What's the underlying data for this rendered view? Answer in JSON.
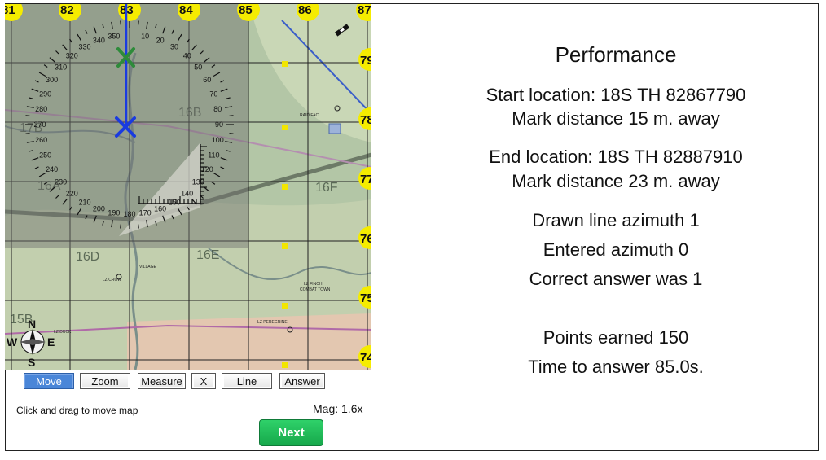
{
  "map": {
    "grid_top_labels": [
      "81",
      "82",
      "83",
      "84",
      "85",
      "86",
      "87"
    ],
    "grid_right_labels": [
      "79",
      "78",
      "77",
      "76",
      "75",
      "74"
    ],
    "grid_squares": [
      "16B",
      "17B",
      "16A",
      "16F",
      "16D",
      "16E",
      "15B"
    ],
    "place_labels": [
      "LZ FINCH",
      "COMBAT TOWN",
      "LZ PEREGRINE",
      "LZ DUCK",
      "VILLAGE",
      "LZ CROW",
      "RAID FAC"
    ],
    "protractor_ticks": [
      "320",
      "330",
      "340",
      "350",
      "10",
      "20",
      "30",
      "40",
      "50",
      "60",
      "70",
      "80",
      "90",
      "100",
      "110",
      "120",
      "130",
      "140",
      "150",
      "160",
      "170",
      "180",
      "190",
      "200",
      "210",
      "220",
      "230",
      "240",
      "250",
      "260",
      "270",
      "280",
      "290",
      "300",
      "310"
    ],
    "compass": {
      "n": "N",
      "s": "S",
      "e": "E",
      "w": "W"
    },
    "start_marker_color": "#2e8b3a",
    "end_marker_color": "#1a3be0",
    "line_color": "#1a3be0"
  },
  "toolbar": {
    "move": "Move",
    "zoom": "Zoom",
    "measure": "Measure",
    "x": "X",
    "line": "Line",
    "answer": "Answer",
    "active": "Move"
  },
  "hint": "Click and drag to move map",
  "mag": "Mag: 1.6x",
  "next_label": "Next",
  "performance": {
    "title": "Performance",
    "start_location": "Start location: 18S TH 82867790",
    "start_distance": "Mark distance 15 m. away",
    "end_location": "End location: 18S TH 82887910",
    "end_distance": "Mark distance 23 m. away",
    "drawn_azimuth": "Drawn line azimuth 1",
    "entered_azimuth": "Entered azimuth 0",
    "correct_answer": "Correct answer was 1",
    "points": "Points earned 150",
    "time": "Time to answer 85.0s."
  }
}
